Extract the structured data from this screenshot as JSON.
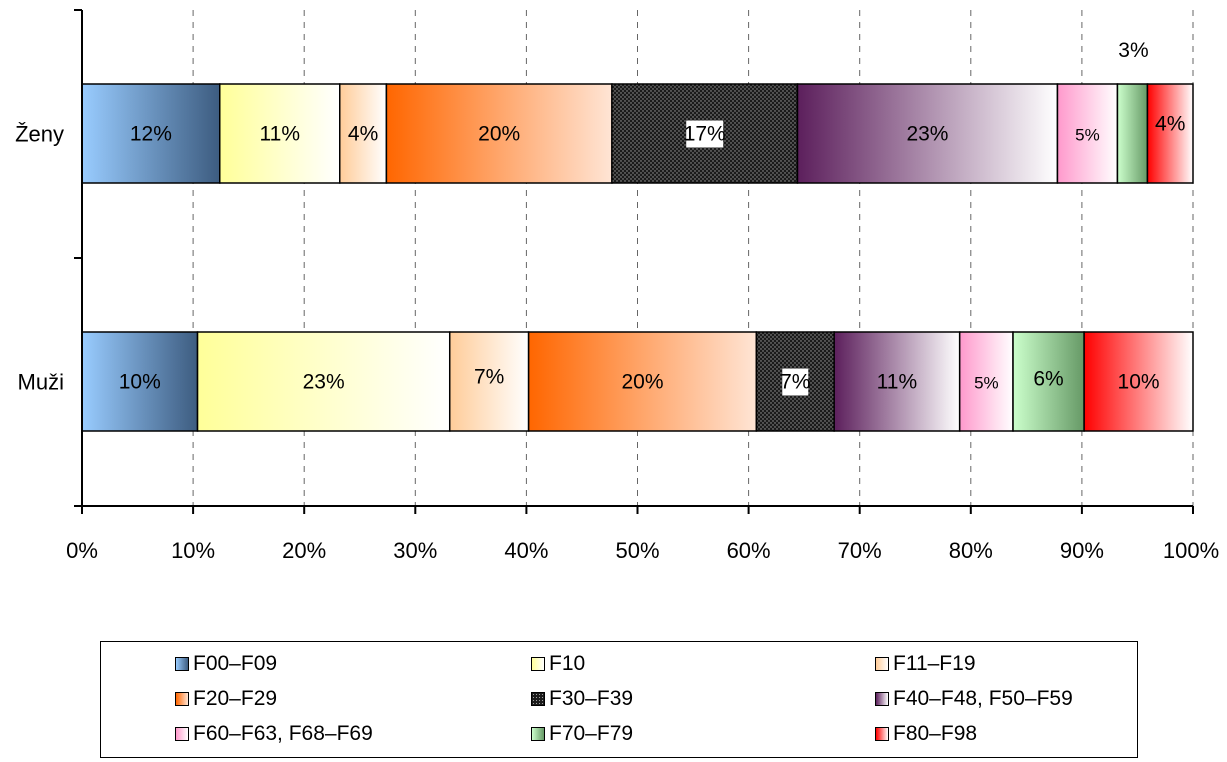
{
  "chart_data": {
    "type": "bar",
    "orientation": "horizontal",
    "stacked": "percent",
    "categories": [
      "Ženy",
      "Muži"
    ],
    "series": [
      {
        "name": "F00–F09",
        "values": [
          12.4,
          10.4
        ],
        "labels": [
          "12%",
          "10%"
        ],
        "color": "#99CCFF",
        "color2": "#3D5C80",
        "fill": "gradient"
      },
      {
        "name": "F10",
        "values": [
          10.8,
          22.7
        ],
        "labels": [
          "11%",
          "23%"
        ],
        "color": "#FFFF99",
        "color2": "#FFFFFF",
        "fill": "gradient"
      },
      {
        "name": "F11–F19",
        "values": [
          4.2,
          7.1
        ],
        "labels": [
          "4%",
          "7%"
        ],
        "color": "#FFCC99",
        "color2": "#FFFFFF",
        "fill": "gradient"
      },
      {
        "name": "F20–F29",
        "values": [
          20.3,
          20.5
        ],
        "labels": [
          "20%",
          "20%"
        ],
        "color": "#FF6600",
        "color2": "#FFE5D5",
        "fill": "gradient"
      },
      {
        "name": "F30–F39",
        "values": [
          16.7,
          7.0
        ],
        "labels": [
          "17%",
          "7%"
        ],
        "color": "#000000",
        "color2": "#777777",
        "fill": "pattern"
      },
      {
        "name": "F40–F48, F50–F59",
        "values": [
          23.4,
          11.3
        ],
        "labels": [
          "23%",
          "11%"
        ],
        "color": "#5C1F5C",
        "color2": "#FFFFFF",
        "fill": "gradient"
      },
      {
        "name": "F60–F63, F68–F69",
        "values": [
          5.4,
          4.8
        ],
        "labels": [
          "5%",
          "5%"
        ],
        "color": "#FF99CC",
        "color2": "#FFFFFF",
        "fill": "gradient"
      },
      {
        "name": "F70–F79",
        "values": [
          2.7,
          6.4
        ],
        "labels": [
          "3%",
          "6%"
        ],
        "color": "#CCFFCC",
        "color2": "#669966",
        "fill": "gradient"
      },
      {
        "name": "F80–F98",
        "values": [
          4.1,
          9.8
        ],
        "labels": [
          "4%",
          "10%"
        ],
        "color": "#FF0000",
        "color2": "#FFFFFF",
        "fill": "gradient"
      }
    ],
    "xlim": [
      0,
      100
    ],
    "x_ticks": [
      "0%",
      "10%",
      "20%",
      "30%",
      "40%",
      "50%",
      "60%",
      "70%",
      "80%",
      "90%",
      "100%"
    ],
    "grid": "vertical dashed",
    "legend_position": "bottom",
    "title": "",
    "xlabel": "",
    "ylabel": ""
  }
}
